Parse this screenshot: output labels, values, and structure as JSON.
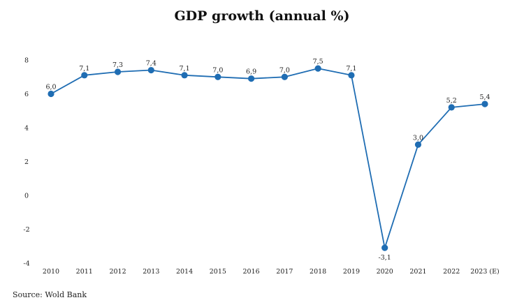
{
  "chart_data": {
    "type": "line",
    "title": "GDP growth (annual %)",
    "xlabel": "",
    "ylabel": "",
    "categories": [
      "2010",
      "2011",
      "2012",
      "2013",
      "2014",
      "2015",
      "2016",
      "2017",
      "2018",
      "2019",
      "2020",
      "2021",
      "2022",
      "2023 (E)"
    ],
    "series": [
      {
        "name": "GDP growth (annual %)",
        "values": [
          6.0,
          7.1,
          7.3,
          7.4,
          7.1,
          7.0,
          6.9,
          7.0,
          7.5,
          7.1,
          -3.1,
          3.0,
          5.2,
          5.4
        ],
        "labels": [
          "6,0",
          "7,1",
          "7,3",
          "7,4",
          "7,1",
          "7,0",
          "6,9",
          "7,0",
          "7,5",
          "7,1",
          "-3,1",
          "3,0",
          "5,2",
          "5,4"
        ]
      }
    ],
    "yticks": [
      8,
      6,
      4,
      2,
      0,
      -2,
      -4
    ],
    "ytick_labels": [
      "8",
      "6",
      "4",
      "2",
      "0",
      "-2",
      "-4"
    ],
    "ylim": [
      -4,
      8
    ],
    "grid": false,
    "legend": "none",
    "line_color": "#1f6db3",
    "marker_color": "#1f6db3"
  },
  "source": "Source: Wold Bank"
}
